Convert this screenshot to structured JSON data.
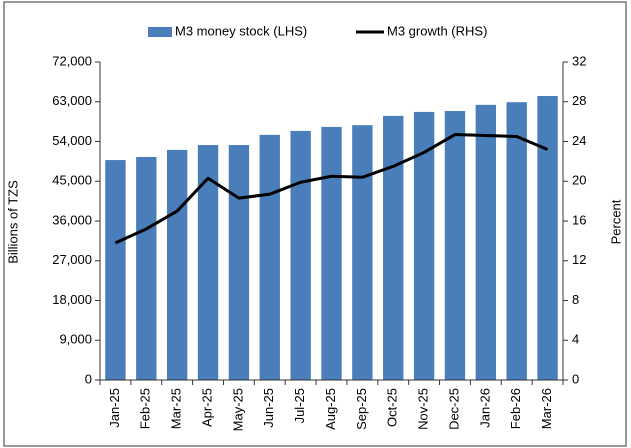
{
  "chart_data": {
    "type": "bar_line",
    "categories": [
      "Jan-25",
      "Feb-25",
      "Mar-25",
      "Apr-25",
      "May-25",
      "Jun-25",
      "Jul-25",
      "Aug-25",
      "Sep-25",
      "Oct-25",
      "Nov-25",
      "Dec-25",
      "Jan-26",
      "Feb-26",
      "Mar-26"
    ],
    "series": [
      {
        "name": "M3 money stock (LHS)",
        "color": "#4a7ebb",
        "type": "bar",
        "values": [
          49800,
          50500,
          52100,
          53200,
          53200,
          55500,
          56400,
          57300,
          57700,
          59800,
          60700,
          60900,
          62300,
          62900,
          64300
        ]
      },
      {
        "name": "M3 growth (RHS)",
        "color": "#000000",
        "type": "line",
        "axis": "y2",
        "values": [
          13.8,
          15.2,
          17.0,
          20.3,
          18.3,
          18.7,
          19.9,
          20.5,
          20.4,
          21.5,
          22.9,
          24.7,
          24.6,
          24.5,
          23.2
        ]
      }
    ],
    "ylabel": "Billions of TZS",
    "y2label": "Percent",
    "ylim": [
      0,
      72000
    ],
    "yticks": [
      0,
      {
        "value": 9000,
        "label": "9,000"
      },
      {
        "value": 18000,
        "label": "18,000"
      },
      {
        "value": 27000,
        "label": "27,000"
      },
      {
        "value": 36000,
        "label": "36,000"
      },
      {
        "value": 45000,
        "label": "45,000"
      },
      {
        "value": 54000,
        "label": "54,000"
      },
      {
        "value": 63000,
        "label": "63,000"
      },
      {
        "value": 72000,
        "label": "72,000"
      }
    ],
    "y2lim": [
      0,
      32
    ],
    "y2ticks": [
      0,
      4,
      8,
      12,
      16,
      20,
      24,
      28,
      32
    ],
    "legend": "top"
  }
}
